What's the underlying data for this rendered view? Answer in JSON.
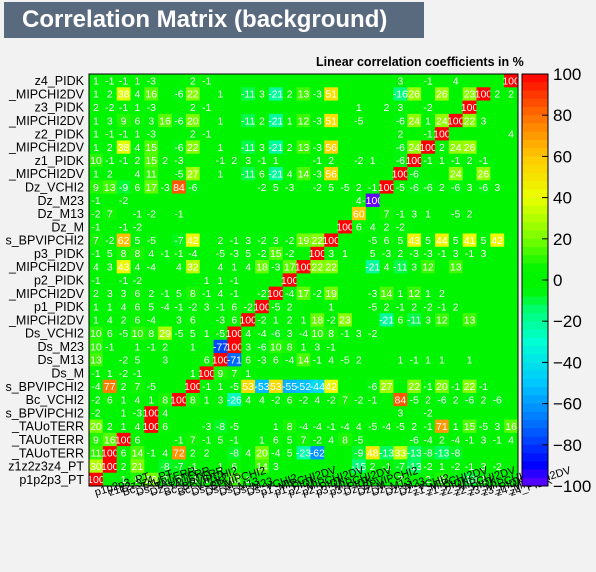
{
  "chart_data": {
    "type": "heatmap",
    "title": "Correlation Matrix (background)",
    "subtitle": "Linear correlation coefficients in %",
    "y_labels": [
      "z4_PIDK",
      "_MIPCHI2DV",
      "z3_PIDK",
      "_MIPCHI2DV",
      "z2_PIDK",
      "_MIPCHI2DV",
      "z1_PIDK",
      "_MIPCHI2DV",
      "Dz_VCHI2",
      "Dz_M23",
      "Dz_M13",
      "Dz_M",
      "s_BPVIPCHI2",
      "p3_PIDK",
      "_MIPCHI2DV",
      "p2_PIDK",
      "_MIPCHI2DV",
      "p1_PIDK",
      "_MIPCHI2DV",
      "Ds_VCHI2",
      "Ds_M23",
      "Ds_M13",
      "Ds_M",
      "s_BPVIPCHI2",
      "Bc_VCHI2",
      "s_BPVIPCHI2",
      "_TAUoTERR",
      "_TAUoTERR",
      "_TAUoTERR",
      "z1z2z3z4_PT",
      "p1p2p3_PT"
    ],
    "x_labels": [
      "p1p2p3_PT",
      "z1z2z3z4_PT",
      "Bc_TAUoTERR",
      "Ds_TAUoTERR",
      "Dz_TAUoTERR",
      "Bc_BPVIPCHI2",
      "Bc_VCHI2",
      "Ds_BPVIPCHI2",
      "Ds_M",
      "Ds_M13",
      "Ds_M23",
      "Ds_VCHI2",
      "p1_MIPCHI2DV",
      "p1_PIDK",
      "p2_MIPCHI2DV",
      "p2_PIDK",
      "p3_MIPCHI2DV",
      "p3_PIDK",
      "Dz_BPVIPCHI2",
      "Dz_M",
      "Dz_M13",
      "Dz_M23",
      "Dz_VCHI2",
      "z1_MIPCHI2DV",
      "z1_PIDK",
      "z2_MIPCHI2DV",
      "z2_PIDK",
      "z3_MIPCHI2DV",
      "z3_PIDK",
      "z4_MIPCHI2DV",
      "z4_PIDK"
    ],
    "colorbar": {
      "min": -100,
      "max": 100,
      "ticks": [
        "100",
        "80",
        "60",
        "40",
        "20",
        "0",
        "−20",
        "−40",
        "−60",
        "−80",
        "−100"
      ]
    },
    "values": [
      [
        1,
        -1,
        -1,
        1,
        -3,
        0,
        0,
        2,
        -1,
        0,
        0,
        0,
        0,
        0,
        0,
        0,
        0,
        0,
        0,
        0,
        0,
        0,
        3,
        0,
        -1,
        0,
        4,
        0,
        0,
        0,
        100
      ],
      [
        1,
        2,
        38,
        4,
        16,
        0,
        -6,
        22,
        0,
        1,
        0,
        -11,
        3,
        -21,
        2,
        13,
        -3,
        51,
        0,
        0,
        0,
        0,
        -16,
        26,
        0,
        26,
        0,
        23,
        100,
        2,
        2
      ],
      [
        2,
        -2,
        -1,
        1,
        -3,
        0,
        0,
        2,
        -1,
        0,
        0,
        0,
        0,
        0,
        0,
        0,
        0,
        0,
        0,
        1,
        0,
        2,
        3,
        0,
        -2,
        0,
        0,
        100,
        0,
        0,
        0
      ],
      [
        1,
        3,
        9,
        6,
        3,
        16,
        -6,
        20,
        0,
        1,
        0,
        -11,
        2,
        -21,
        1,
        12,
        -3,
        51,
        0,
        -5,
        0,
        0,
        -6,
        24,
        1,
        24,
        100,
        22,
        3,
        0,
        0
      ],
      [
        1,
        -1,
        -1,
        1,
        -3,
        0,
        0,
        2,
        -1,
        0,
        0,
        0,
        0,
        0,
        0,
        0,
        0,
        0,
        0,
        0,
        0,
        0,
        2,
        0,
        -1,
        100,
        0,
        0,
        0,
        0,
        4
      ],
      [
        1,
        2,
        38,
        4,
        15,
        0,
        -6,
        22,
        0,
        1,
        0,
        -11,
        3,
        -21,
        2,
        13,
        -3,
        56,
        0,
        0,
        0,
        0,
        -6,
        24,
        100,
        2,
        24,
        26,
        0,
        0,
        0
      ],
      [
        10,
        -1,
        -1,
        2,
        15,
        2,
        -3,
        0,
        0,
        -1,
        2,
        3,
        -1,
        1,
        0,
        0,
        -1,
        2,
        0,
        -2,
        1,
        0,
        -6,
        100,
        -1,
        1,
        -1,
        2,
        -1,
        0,
        0
      ],
      [
        1,
        2,
        0,
        4,
        11,
        0,
        -5,
        27,
        0,
        1,
        0,
        -11,
        6,
        -21,
        4,
        14,
        -3,
        56,
        0,
        0,
        0,
        0,
        100,
        -6,
        0,
        0,
        24,
        0,
        26,
        0,
        0
      ],
      [
        9,
        13,
        -9,
        6,
        17,
        -3,
        84,
        -6,
        0,
        0,
        0,
        0,
        -2,
        5,
        -3,
        0,
        -2,
        5,
        -5,
        2,
        -1,
        100,
        -5,
        -6,
        -6,
        2,
        -6,
        3,
        -6,
        3,
        0
      ],
      [
        -1,
        0,
        -2,
        0,
        0,
        0,
        0,
        0,
        0,
        0,
        0,
        0,
        0,
        0,
        0,
        0,
        0,
        0,
        0,
        4,
        -100,
        0,
        0,
        0,
        0,
        0,
        0,
        0,
        0,
        0,
        0
      ],
      [
        -2,
        7,
        0,
        -1,
        -2,
        0,
        -1,
        0,
        0,
        0,
        0,
        0,
        0,
        0,
        0,
        0,
        0,
        0,
        0,
        60,
        0,
        7,
        -1,
        3,
        1,
        0,
        -5,
        2,
        0,
        0,
        0
      ],
      [
        -1,
        0,
        -1,
        -2,
        0,
        0,
        0,
        0,
        0,
        0,
        0,
        0,
        0,
        0,
        0,
        0,
        0,
        0,
        100,
        6,
        4,
        2,
        -2,
        0,
        0,
        0,
        0,
        0,
        0,
        0,
        0
      ],
      [
        7,
        -2,
        62,
        5,
        -5,
        0,
        -7,
        42,
        0,
        2,
        -1,
        3,
        -2,
        3,
        -2,
        19,
        22,
        100,
        0,
        0,
        -5,
        6,
        5,
        43,
        5,
        44,
        5,
        41,
        5,
        42,
        0
      ],
      [
        -1,
        5,
        8,
        8,
        4,
        -1,
        -1,
        -4,
        0,
        -5,
        -3,
        5,
        -2,
        15,
        -2,
        0,
        100,
        3,
        1,
        0,
        5,
        -3,
        2,
        -3,
        -3,
        -1,
        3,
        -1,
        3,
        0,
        0
      ],
      [
        4,
        3,
        43,
        4,
        -4,
        0,
        4,
        32,
        0,
        4,
        1,
        4,
        18,
        -3,
        17,
        100,
        22,
        22,
        0,
        0,
        -21,
        4,
        -11,
        3,
        12,
        0,
        13,
        0,
        0,
        0,
        0
      ],
      [
        -1,
        0,
        -1,
        -2,
        0,
        0,
        0,
        0,
        1,
        1,
        -1,
        0,
        0,
        0,
        100,
        0,
        0,
        0,
        0,
        0,
        0,
        0,
        0,
        0,
        0,
        0,
        0,
        0,
        0,
        0,
        0
      ],
      [
        2,
        3,
        3,
        6,
        2,
        -1,
        5,
        8,
        -1,
        4,
        -1,
        0,
        -2,
        100,
        -4,
        17,
        -2,
        19,
        0,
        0,
        -3,
        14,
        1,
        12,
        1,
        2,
        0,
        0,
        0,
        0,
        0
      ],
      [
        1,
        1,
        4,
        6,
        5,
        -4,
        -1,
        -2,
        3,
        -1,
        6,
        -2,
        100,
        -5,
        2,
        0,
        0,
        1,
        0,
        0,
        -5,
        2,
        -1,
        2,
        -2,
        -1,
        2,
        0,
        0,
        0,
        0
      ],
      [
        1,
        4,
        2,
        6,
        -4,
        0,
        3,
        6,
        0,
        -3,
        6,
        100,
        -2,
        1,
        2,
        1,
        18,
        -2,
        23,
        0,
        0,
        -21,
        6,
        -11,
        3,
        12,
        0,
        13,
        0,
        0,
        0
      ],
      [
        10,
        6,
        -5,
        10,
        8,
        29,
        -5,
        5,
        1,
        -5,
        100,
        4,
        -4,
        -6,
        3,
        -4,
        10,
        8,
        -1,
        3,
        -2,
        0,
        0,
        0,
        0,
        0,
        0,
        0,
        0,
        0,
        0
      ],
      [
        10,
        -1,
        0,
        1,
        -1,
        2,
        0,
        1,
        0,
        -77,
        100,
        3,
        -6,
        10,
        8,
        1,
        3,
        -1,
        0,
        0,
        0,
        0,
        0,
        0,
        0,
        0,
        0,
        0,
        0,
        0,
        0
      ],
      [
        13,
        0,
        -2,
        5,
        0,
        3,
        0,
        0,
        6,
        100,
        -71,
        6,
        -3,
        6,
        -4,
        14,
        -1,
        4,
        -5,
        2,
        0,
        0,
        1,
        -1,
        1,
        1,
        0,
        1,
        0,
        0,
        0
      ],
      [
        -1,
        1,
        -2,
        -1,
        0,
        0,
        0,
        1,
        100,
        9,
        7,
        1,
        0,
        0,
        0,
        0,
        0,
        0,
        0,
        0,
        0,
        0,
        0,
        0,
        0,
        0,
        0,
        0,
        0,
        0,
        0
      ],
      [
        -4,
        77,
        2,
        7,
        -5,
        0,
        0,
        100,
        -1,
        1,
        -5,
        53,
        -53,
        53,
        -55,
        -52,
        -44,
        42,
        0,
        0,
        -6,
        27,
        0,
        22,
        -1,
        20,
        -1,
        22,
        -1,
        0,
        0
      ],
      [
        -2,
        6,
        1,
        4,
        1,
        8,
        100,
        8,
        1,
        3,
        -26,
        4,
        4,
        -2,
        6,
        -2,
        4,
        -2,
        7,
        -2,
        -1,
        0,
        84,
        -5,
        2,
        -6,
        2,
        -6,
        2,
        -6,
        0
      ],
      [
        -2,
        0,
        1,
        -3,
        100,
        4,
        0,
        0,
        0,
        0,
        0,
        0,
        0,
        0,
        0,
        0,
        0,
        0,
        0,
        0,
        0,
        0,
        3,
        0,
        -2,
        0,
        0,
        0,
        0,
        0,
        0
      ],
      [
        20,
        2,
        1,
        4,
        100,
        6,
        0,
        0,
        -3,
        -8,
        -5,
        0,
        0,
        1,
        8,
        -4,
        -4,
        -1,
        -4,
        4,
        -5,
        -4,
        -5,
        2,
        -1,
        71,
        1,
        15,
        -5,
        3,
        16
      ],
      [
        9,
        16,
        100,
        6,
        0,
        0,
        -1,
        7,
        -1,
        5,
        -1,
        0,
        1,
        6,
        5,
        7,
        -2,
        4,
        8,
        -5,
        0,
        0,
        0,
        -6,
        -4,
        2,
        -4,
        -1,
        3,
        -1,
        4
      ],
      [
        11,
        100,
        6,
        14,
        -1,
        4,
        72,
        2,
        2,
        0,
        -8,
        4,
        20,
        -4,
        5,
        -23,
        -62,
        0,
        0,
        -9,
        48,
        -13,
        33,
        -13,
        -8,
        -13,
        -8,
        0,
        0,
        0,
        0
      ],
      [
        30,
        100,
        2,
        21,
        0,
        -8,
        -7,
        -1,
        0,
        1,
        6,
        0,
        14,
        3,
        0,
        0,
        0,
        0,
        0,
        -15,
        2,
        -1,
        -7,
        -13,
        -2,
        1,
        -2,
        -1,
        3,
        -2,
        0
      ],
      [
        100,
        0,
        1,
        9,
        20,
        2,
        2,
        -4,
        1,
        0,
        13,
        1,
        0,
        0,
        0,
        0,
        0,
        0,
        0,
        0,
        0,
        0,
        7,
        0,
        2,
        9,
        0,
        -10,
        1,
        0,
        0
      ]
    ]
  }
}
